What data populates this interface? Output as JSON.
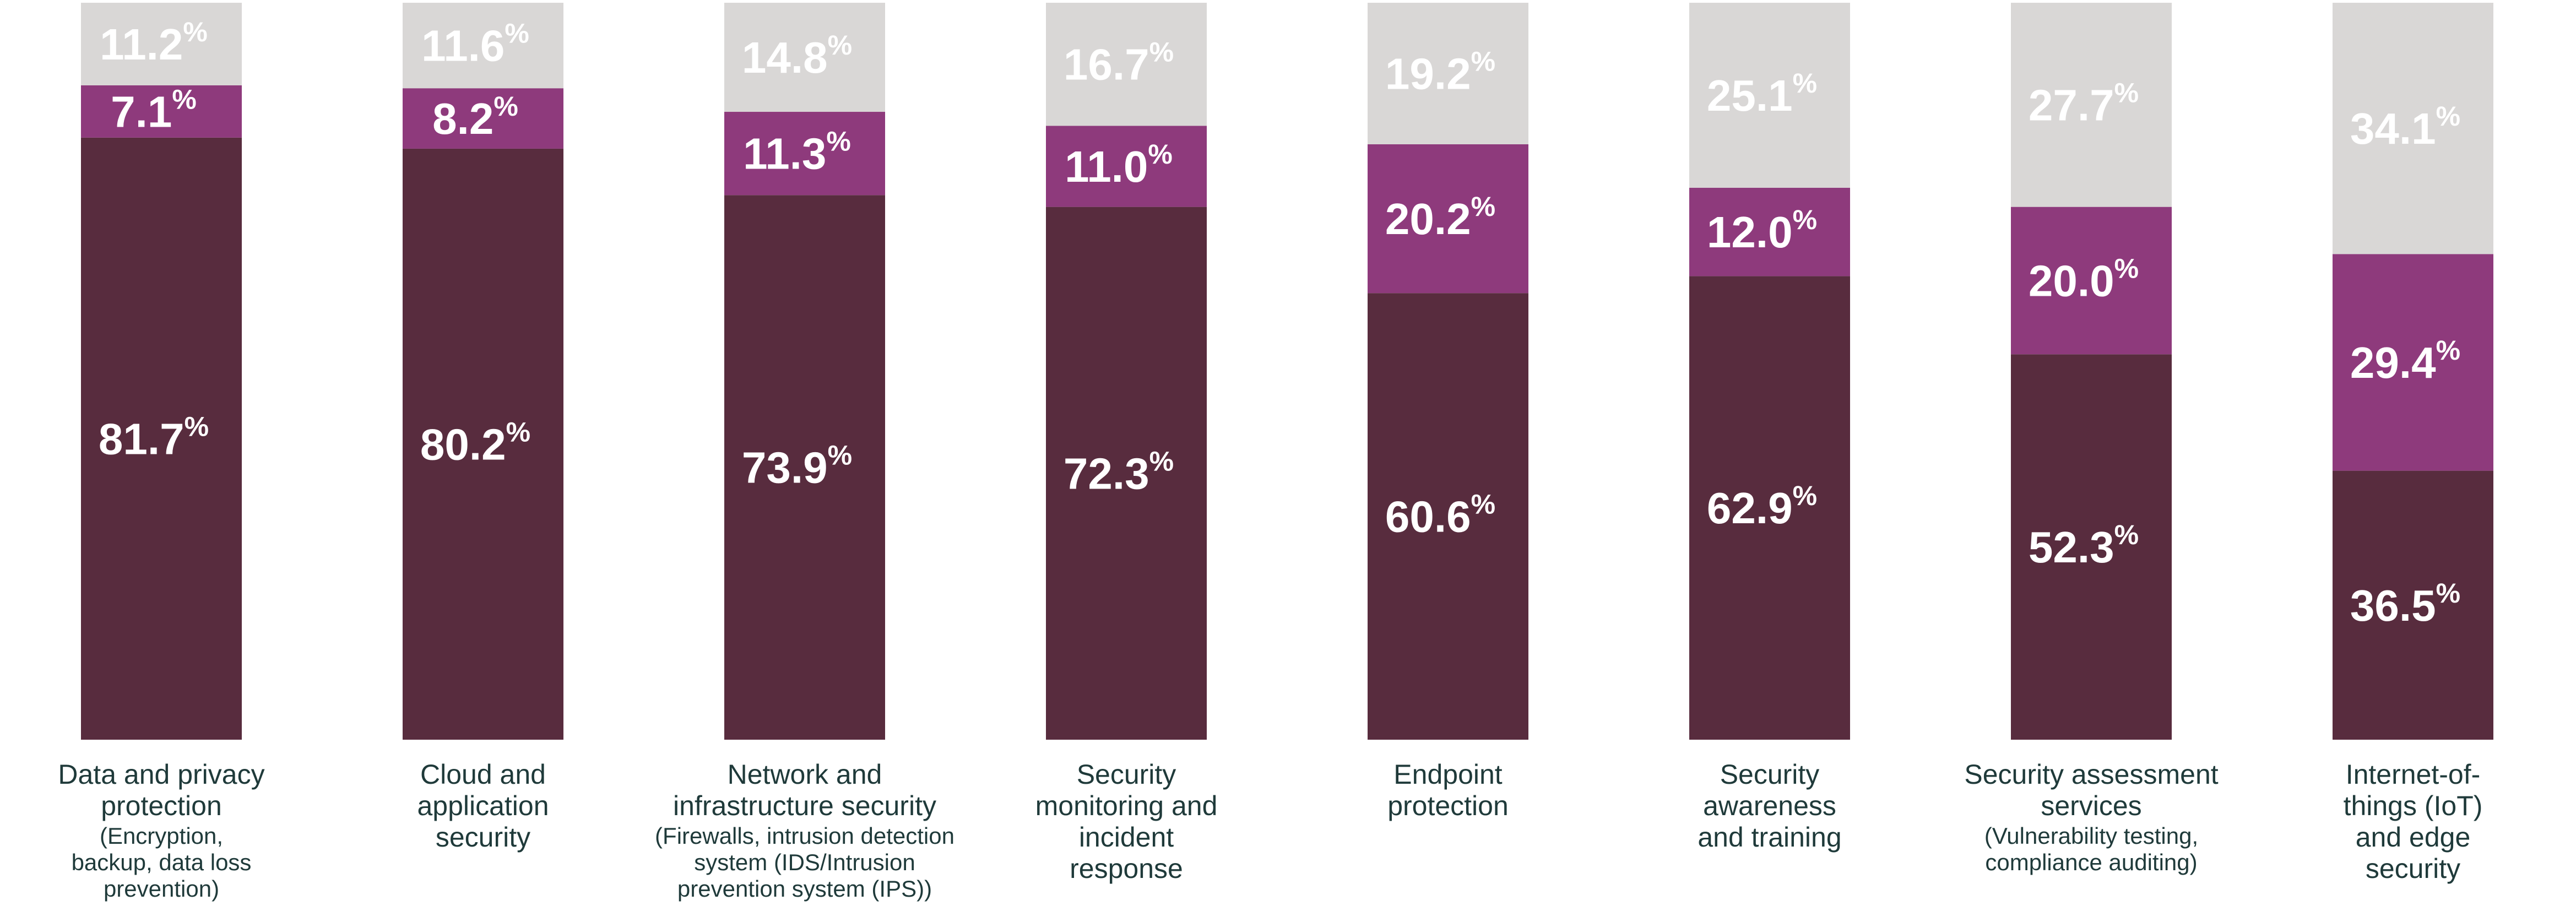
{
  "chart_data": {
    "type": "bar",
    "stacked": true,
    "orientation": "vertical",
    "value_suffix": "%",
    "categories": [
      {
        "label": "Data and privacy protection",
        "sublabel": "(Encryption, backup, data loss prevention)"
      },
      {
        "label": "Cloud and application security",
        "sublabel": ""
      },
      {
        "label": "Network and infrastructure security",
        "sublabel": "(Firewalls, intrusion detection system (IDS/Intrusion prevention system (IPS))"
      },
      {
        "label": "Security monitoring and incident response",
        "sublabel": ""
      },
      {
        "label": "Endpoint protection",
        "sublabel": ""
      },
      {
        "label": "Security awareness and training",
        "sublabel": ""
      },
      {
        "label": "Security assessment services",
        "sublabel": "(Vulnerability testing, compliance auditing)"
      },
      {
        "label": "Internet-of-things (IoT) and edge security",
        "sublabel": ""
      }
    ],
    "series": [
      {
        "name": "bottom",
        "color": "#582c3e",
        "values": [
          81.7,
          80.2,
          73.9,
          72.3,
          60.6,
          62.9,
          52.3,
          36.5
        ]
      },
      {
        "name": "middle",
        "color": "#8e3a7c",
        "values": [
          7.1,
          8.2,
          11.3,
          11.0,
          20.2,
          12.0,
          20.0,
          29.4
        ]
      },
      {
        "name": "top",
        "color": "#d9d7d6",
        "values": [
          11.2,
          11.6,
          14.8,
          16.7,
          19.2,
          25.1,
          27.7,
          34.1
        ]
      }
    ],
    "ylim": [
      0,
      100
    ],
    "title": "",
    "xlabel": "",
    "ylabel": "",
    "grid": false,
    "legend": "none"
  }
}
